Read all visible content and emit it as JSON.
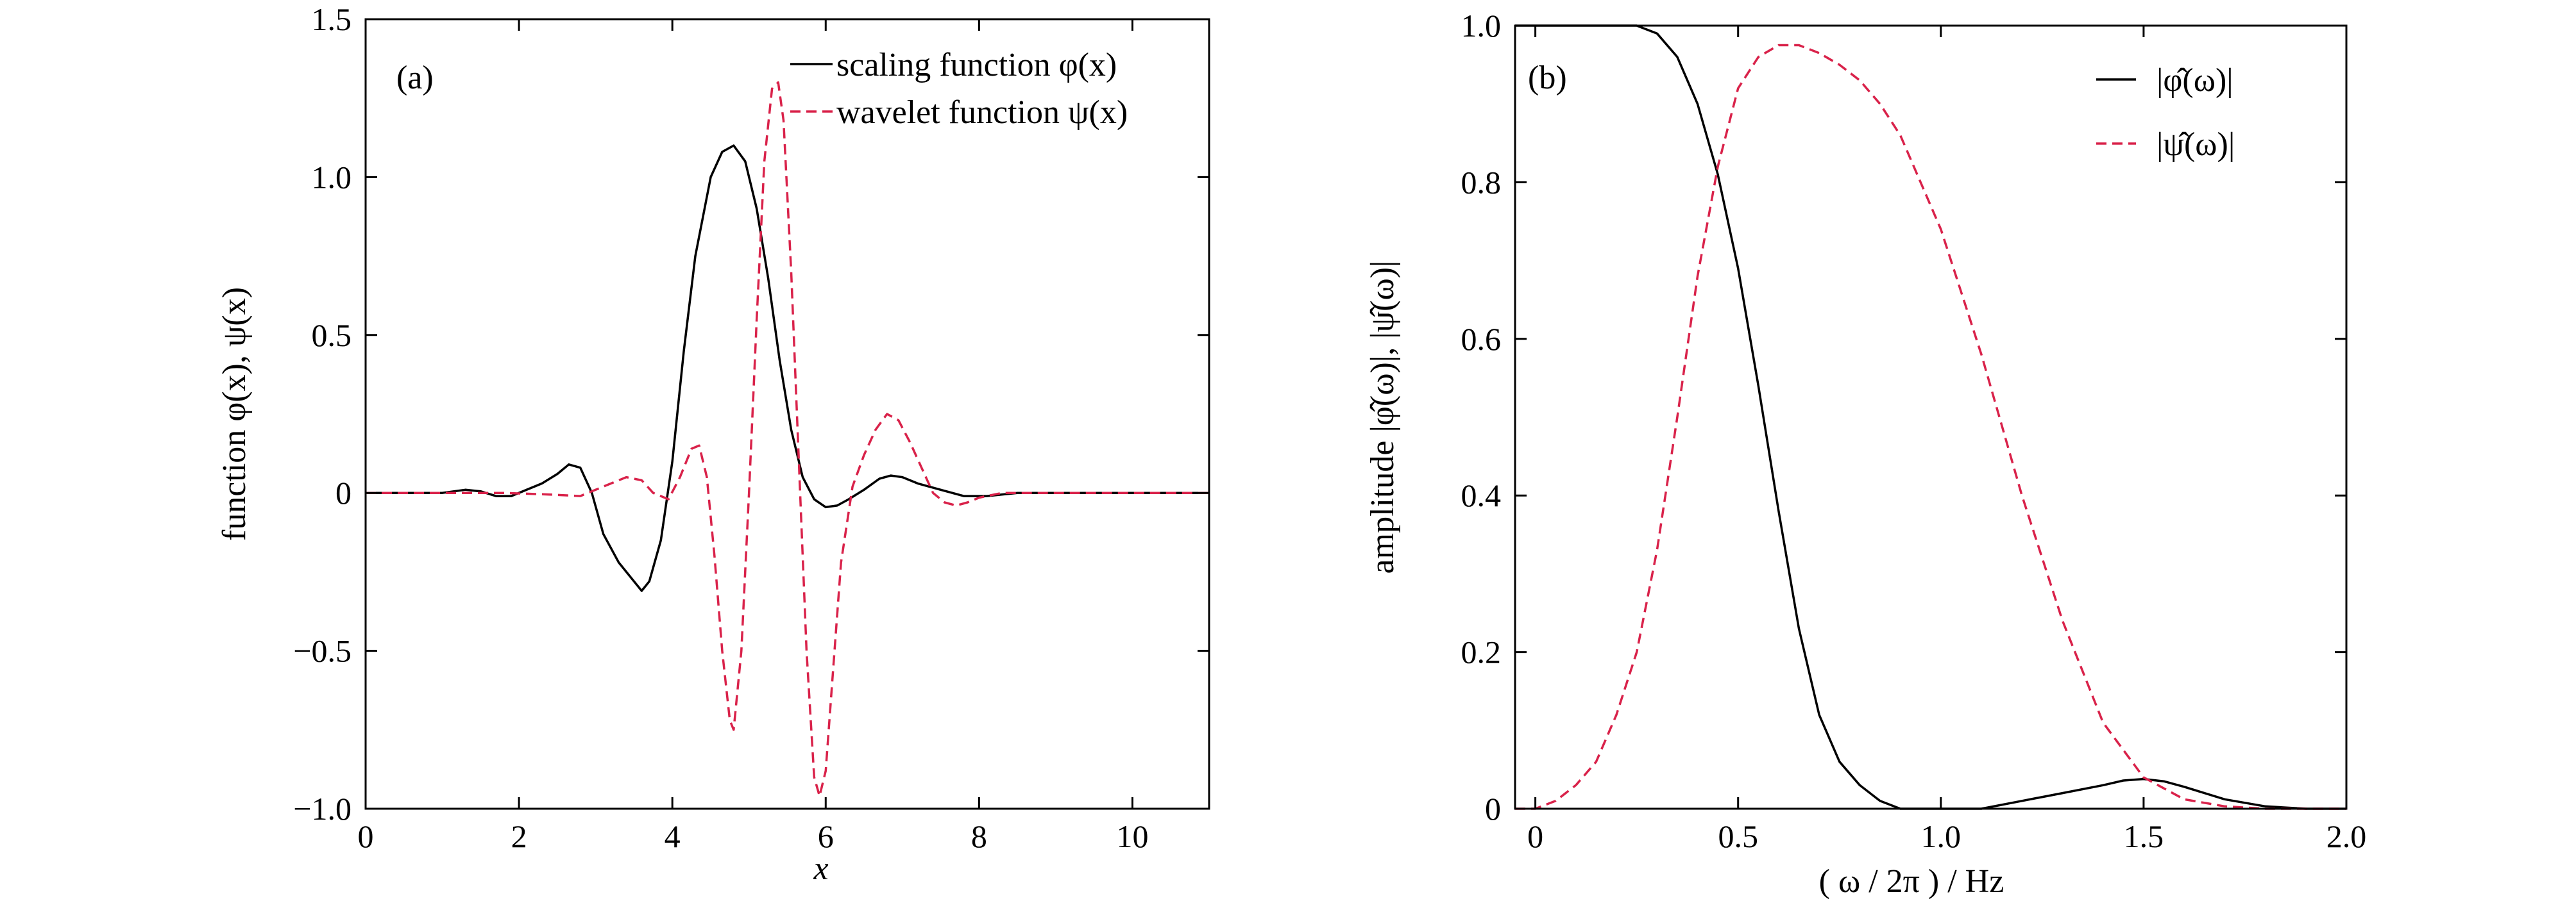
{
  "colors": {
    "scaling": "#000000",
    "wavelet": "#d9224a"
  },
  "chart_data": [
    {
      "type": "line",
      "panel_tag": "(a)",
      "xlabel": "x",
      "ylabel": "function φ(x), ψ(x)",
      "xlim": [
        0,
        11
      ],
      "ylim": [
        -1.0,
        1.5
      ],
      "xticks": [
        0,
        2,
        4,
        6,
        8,
        10
      ],
      "xtick_labels": [
        "0",
        "2",
        "4",
        "6",
        "8",
        "10"
      ],
      "yticks": [
        -1.0,
        -0.5,
        0,
        0.5,
        1.0,
        1.5
      ],
      "ytick_labels": [
        "−1.0",
        "−0.5",
        "0",
        "0.5",
        "1.0",
        "1.5"
      ],
      "grid": false,
      "legend_position": "top-right",
      "series": [
        {
          "name": "scaling function φ(x)",
          "style": "solid",
          "x": [
            0,
            1.0,
            1.3,
            1.5,
            1.7,
            1.9,
            2.1,
            2.3,
            2.5,
            2.65,
            2.8,
            2.95,
            3.1,
            3.3,
            3.5,
            3.6,
            3.7,
            3.85,
            4.0,
            4.15,
            4.3,
            4.5,
            4.65,
            4.8,
            4.95,
            5.1,
            5.25,
            5.4,
            5.55,
            5.7,
            5.85,
            6.0,
            6.15,
            6.3,
            6.5,
            6.7,
            6.85,
            7.0,
            7.2,
            7.5,
            7.8,
            8.1,
            8.5,
            9.0,
            11.0
          ],
          "y": [
            0,
            0,
            0.01,
            0.005,
            -0.01,
            -0.01,
            0.01,
            0.03,
            0.06,
            0.09,
            0.08,
            0.0,
            -0.13,
            -0.22,
            -0.28,
            -0.31,
            -0.28,
            -0.15,
            0.1,
            0.45,
            0.75,
            1.0,
            1.08,
            1.1,
            1.05,
            0.9,
            0.68,
            0.42,
            0.2,
            0.05,
            -0.02,
            -0.045,
            -0.04,
            -0.02,
            0.01,
            0.045,
            0.055,
            0.05,
            0.03,
            0.01,
            -0.01,
            -0.01,
            0.0,
            0.0,
            0.0
          ]
        },
        {
          "name": "wavelet function ψ(x)",
          "style": "dashed",
          "x": [
            0,
            1.8,
            2.4,
            2.8,
            3.1,
            3.4,
            3.6,
            3.75,
            3.95,
            4.1,
            4.25,
            4.35,
            4.45,
            4.55,
            4.65,
            4.75,
            4.8,
            4.9,
            5.0,
            5.1,
            5.2,
            5.3,
            5.38,
            5.45,
            5.55,
            5.65,
            5.75,
            5.85,
            5.92,
            6.0,
            6.1,
            6.2,
            6.35,
            6.5,
            6.65,
            6.8,
            6.95,
            7.1,
            7.25,
            7.4,
            7.55,
            7.7,
            7.85,
            8.0,
            8.3,
            8.6,
            11.0
          ],
          "y": [
            0,
            0,
            -0.005,
            -0.01,
            0.02,
            0.05,
            0.04,
            0.0,
            -0.02,
            0.05,
            0.14,
            0.15,
            0.05,
            -0.2,
            -0.5,
            -0.72,
            -0.75,
            -0.5,
            0.0,
            0.55,
            1.05,
            1.28,
            1.3,
            1.18,
            0.7,
            0.1,
            -0.5,
            -0.9,
            -0.96,
            -0.88,
            -0.55,
            -0.22,
            0.02,
            0.12,
            0.2,
            0.25,
            0.23,
            0.16,
            0.08,
            0.0,
            -0.03,
            -0.04,
            -0.03,
            -0.015,
            0.0,
            0.0,
            0.0
          ]
        }
      ]
    },
    {
      "type": "line",
      "panel_tag": "(b)",
      "xlabel": "( ω / 2π ) / Hz",
      "ylabel": "amplitude |φ̂(ω)|, |ψ̂(ω)|",
      "xlim": [
        -0.05,
        2.0
      ],
      "ylim": [
        0,
        1.0
      ],
      "xticks": [
        0,
        0.5,
        1.0,
        1.5,
        2.0
      ],
      "xtick_labels": [
        "0",
        "0.5",
        "1.0",
        "1.5",
        "2.0"
      ],
      "yticks": [
        0,
        0.2,
        0.4,
        0.6,
        0.8,
        1.0
      ],
      "ytick_labels": [
        "0",
        "0.2",
        "0.4",
        "0.6",
        "0.8",
        "1.0"
      ],
      "grid": false,
      "legend_position": "top-right",
      "series": [
        {
          "name": "|φ̂(ω)|",
          "style": "solid",
          "x": [
            -0.05,
            0.1,
            0.2,
            0.25,
            0.3,
            0.35,
            0.4,
            0.45,
            0.5,
            0.55,
            0.6,
            0.65,
            0.7,
            0.75,
            0.8,
            0.85,
            0.9,
            1.0,
            1.1,
            1.2,
            1.3,
            1.4,
            1.45,
            1.5,
            1.55,
            1.6,
            1.7,
            1.8,
            1.9,
            2.0
          ],
          "y": [
            1.0,
            1.0,
            1.0,
            1.0,
            0.99,
            0.96,
            0.9,
            0.81,
            0.69,
            0.54,
            0.38,
            0.23,
            0.12,
            0.06,
            0.03,
            0.01,
            0.0,
            0.0,
            0.0,
            0.01,
            0.02,
            0.03,
            0.036,
            0.038,
            0.035,
            0.028,
            0.012,
            0.003,
            0.0,
            0.0
          ]
        },
        {
          "name": "|ψ̂(ω)|",
          "style": "dashed",
          "x": [
            -0.05,
            0.0,
            0.05,
            0.1,
            0.15,
            0.2,
            0.25,
            0.3,
            0.35,
            0.4,
            0.45,
            0.5,
            0.55,
            0.6,
            0.65,
            0.7,
            0.75,
            0.8,
            0.85,
            0.9,
            1.0,
            1.1,
            1.2,
            1.3,
            1.4,
            1.5,
            1.6,
            1.7,
            1.8,
            1.9,
            2.0
          ],
          "y": [
            0.0,
            0.0,
            0.01,
            0.03,
            0.06,
            0.12,
            0.2,
            0.33,
            0.5,
            0.68,
            0.82,
            0.92,
            0.96,
            0.975,
            0.975,
            0.965,
            0.95,
            0.93,
            0.9,
            0.86,
            0.74,
            0.58,
            0.4,
            0.24,
            0.11,
            0.04,
            0.012,
            0.003,
            0.0,
            0.0,
            0.0
          ]
        }
      ]
    }
  ]
}
